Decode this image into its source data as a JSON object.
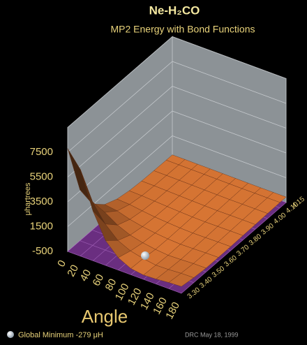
{
  "chart_data": {
    "type": "surface",
    "title": "Ne-H₂CO",
    "subtitle": "MP2 Energy with Bond Functions",
    "zlabel": "μhartrees",
    "xlabel": "Angle",
    "x": [
      0,
      20,
      40,
      60,
      80,
      100,
      120,
      140,
      160,
      180
    ],
    "y": [
      3.3,
      3.4,
      3.5,
      3.6,
      3.7,
      3.8,
      3.9,
      4.0,
      4.1,
      4.15
    ],
    "z": [
      [
        7800,
        6500,
        3500,
        1500,
        500,
        0,
        -150,
        -100,
        0,
        50
      ],
      [
        3600,
        3000,
        1600,
        650,
        180,
        -60,
        -220,
        -190,
        -120,
        -100
      ],
      [
        1600,
        1300,
        650,
        220,
        -20,
        -180,
        -279,
        -250,
        -200,
        -190
      ],
      [
        700,
        560,
        250,
        40,
        -100,
        -200,
        -250,
        -230,
        -200,
        -190
      ],
      [
        280,
        220,
        80,
        -40,
        -120,
        -180,
        -210,
        -200,
        -180,
        -175
      ],
      [
        90,
        60,
        0,
        -60,
        -110,
        -150,
        -170,
        -165,
        -155,
        -150
      ],
      [
        10,
        0,
        -30,
        -60,
        -90,
        -115,
        -130,
        -125,
        -120,
        -118
      ],
      [
        -20,
        -25,
        -40,
        -55,
        -70,
        -85,
        -95,
        -95,
        -90,
        -90
      ],
      [
        -30,
        -32,
        -38,
        -45,
        -55,
        -62,
        -68,
        -68,
        -66,
        -65
      ],
      [
        -30,
        -31,
        -35,
        -40,
        -48,
        -55,
        -60,
        -60,
        -58,
        -57
      ]
    ],
    "xlim": [
      0,
      180
    ],
    "xticks": [
      0,
      20,
      40,
      60,
      80,
      100,
      120,
      140,
      160,
      180
    ],
    "ylim": [
      3.3,
      4.15
    ],
    "yticks": [
      {
        "value": 3.3,
        "label": "3.30"
      },
      {
        "value": 3.4,
        "label": "3.40"
      },
      {
        "value": 3.5,
        "label": "3.50"
      },
      {
        "value": 3.6,
        "label": "3.60"
      },
      {
        "value": 3.7,
        "label": "3.70"
      },
      {
        "value": 3.8,
        "label": "3.80"
      },
      {
        "value": 3.9,
        "label": "3.90"
      },
      {
        "value": 4.0,
        "label": "4.00"
      },
      {
        "value": 4.1,
        "label": "4.10"
      },
      {
        "value": 4.15,
        "label": "4.15"
      }
    ],
    "zlim": [
      -500,
      9500
    ],
    "zticks": [
      -500,
      1500,
      3500,
      5500,
      7500
    ],
    "surface_color": "#e67d37",
    "floor_color": "#6a2e80",
    "wall_color": "#8c9296",
    "annotation": "Global Minimum  -279 μH",
    "credit": "DRC May 18, 1999"
  }
}
